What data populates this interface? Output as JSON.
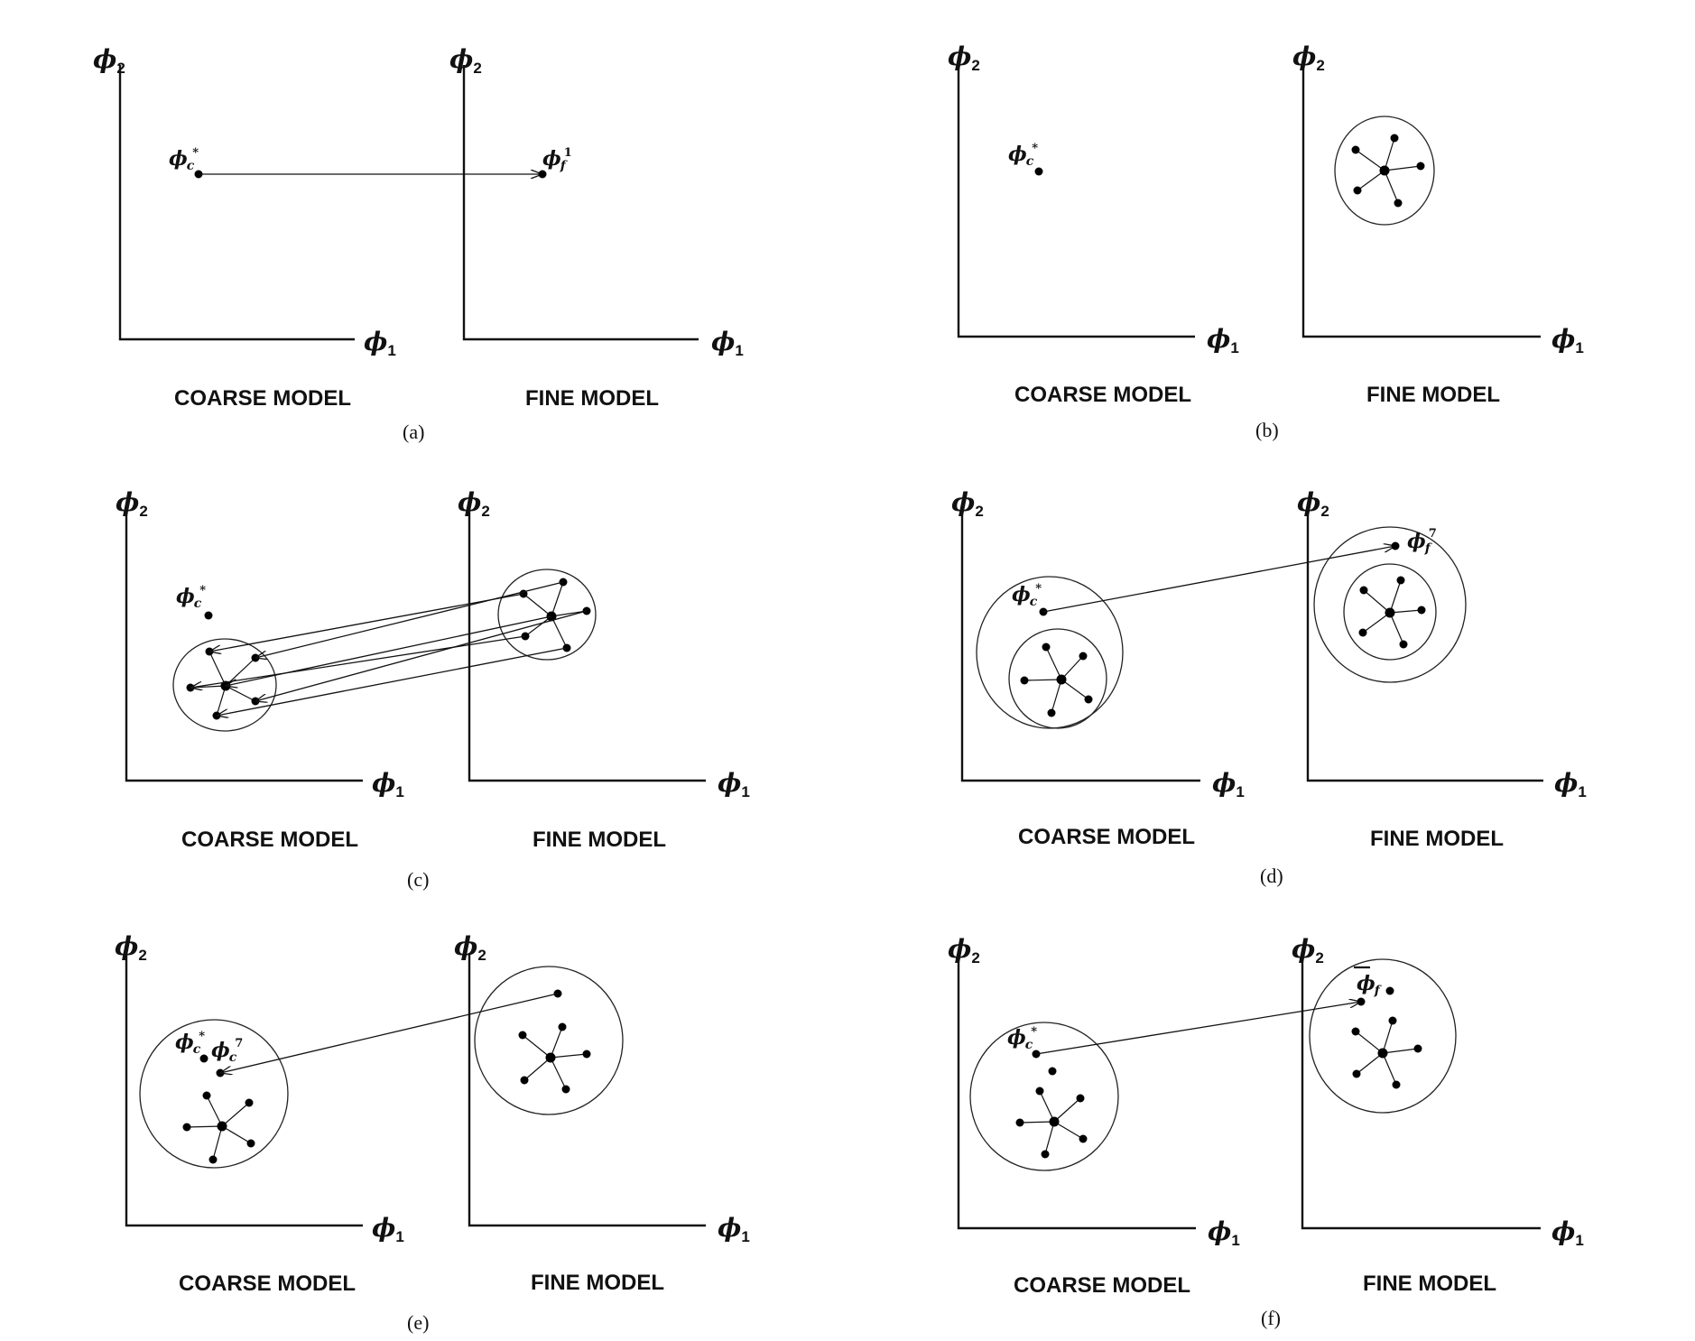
{
  "labels": {
    "coarse": "COARSE MODEL",
    "fine": "FINE MODEL"
  },
  "axes": {
    "symbol": "ϕ",
    "x_sub": "1",
    "y_sub": "2"
  },
  "points": {
    "symbol": "ϕ",
    "coarse_sub": "c",
    "fine_sub": "f",
    "star": "*",
    "one": "1",
    "seven": "7"
  },
  "panels": [
    {
      "caption": "(a)"
    },
    {
      "caption": "(b)"
    },
    {
      "caption": "(c)"
    },
    {
      "caption": "(d)"
    },
    {
      "caption": "(e)"
    },
    {
      "caption": "(f)"
    }
  ]
}
